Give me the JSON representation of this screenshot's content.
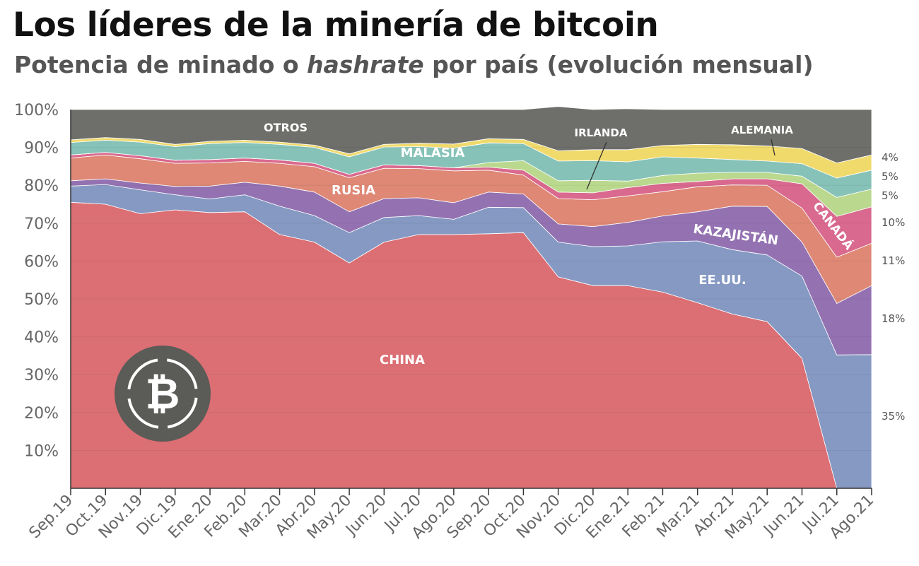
{
  "title": "Los líderes de la minería de bitcoin",
  "subtitle": {
    "before": "Potencia de minado o ",
    "italic": "hashrate",
    "after": " por país (evolución mensual)"
  },
  "chart_data": {
    "type": "area",
    "stacked": true,
    "title": "Los líderes de la minería de bitcoin",
    "subtitle": "Potencia de minado o hashrate por país (evolución mensual)",
    "ylim": [
      0,
      100
    ],
    "yticks": [
      "10%",
      "20%",
      "30%",
      "40%",
      "50%",
      "60%",
      "70%",
      "80%",
      "90%",
      "100%"
    ],
    "categories": [
      "Sep.19",
      "Oct.19",
      "Nov.19",
      "Dic.19",
      "Ene.20",
      "Feb.20",
      "Mar.20",
      "Abr.20",
      "May.20",
      "Jun.20",
      "Jul.20",
      "Ago.20",
      "Sep.20",
      "Oct.20",
      "Nov.20",
      "Dic.20",
      "Ene.21",
      "Feb.21",
      "Mar.21",
      "Abr.21",
      "May.21",
      "Jun.21",
      "Jul.21",
      "Ago.21"
    ],
    "series": [
      {
        "name": "CHINA",
        "color": "#db6f74",
        "values": [
          75.5,
          75.0,
          72.5,
          73.5,
          72.8,
          73.0,
          67.0,
          65.0,
          59.5,
          65.0,
          67.0,
          67.0,
          67.2,
          67.5,
          55.8,
          53.5,
          53.5,
          51.8,
          49.0,
          46.0,
          44.0,
          34.3,
          0.0,
          0.0
        ]
      },
      {
        "name": "EE.UU.",
        "color": "#8599c3",
        "values": [
          4.3,
          5.2,
          6.3,
          4.0,
          3.6,
          4.5,
          7.5,
          7.0,
          8.0,
          6.5,
          5.0,
          4.0,
          7.0,
          6.6,
          9.2,
          10.3,
          10.5,
          13.3,
          16.3,
          17.0,
          17.6,
          21.7,
          35.2,
          35.3
        ]
      },
      {
        "name": "KAZAJISTÁN",
        "color": "#9472b2",
        "values": [
          1.4,
          1.5,
          1.8,
          2.2,
          3.4,
          3.3,
          5.3,
          6.2,
          5.5,
          5.0,
          4.7,
          4.4,
          4.0,
          3.6,
          4.8,
          5.3,
          6.2,
          6.8,
          7.7,
          11.5,
          12.8,
          9.0,
          13.6,
          18.2
        ]
      },
      {
        "name": "RUSIA",
        "color": "#de8875",
        "values": [
          6.0,
          6.3,
          6.4,
          6.1,
          6.1,
          5.5,
          6.0,
          6.7,
          9.0,
          8.0,
          7.7,
          8.4,
          5.8,
          5.0,
          6.7,
          7.1,
          7.0,
          6.4,
          6.6,
          5.6,
          5.6,
          9.0,
          12.2,
          11.2
        ]
      },
      {
        "name": "CANADÁ",
        "color": "#d9698e",
        "values": [
          0.8,
          0.7,
          0.8,
          0.8,
          0.9,
          0.9,
          0.9,
          0.9,
          0.9,
          0.9,
          0.8,
          0.8,
          0.8,
          1.3,
          1.7,
          1.8,
          2.2,
          2.2,
          1.4,
          1.6,
          1.7,
          6.4,
          10.8,
          9.6
        ]
      },
      {
        "name": "IRLANDA",
        "color": "#bad98e",
        "values": [
          0.0,
          0.0,
          0.0,
          0.0,
          0.0,
          0.0,
          0.0,
          0.0,
          0.0,
          0.0,
          0.0,
          0.0,
          1.2,
          2.5,
          3.0,
          3.3,
          1.7,
          2.1,
          2.2,
          1.7,
          1.7,
          2.0,
          5.0,
          4.7
        ]
      },
      {
        "name": "MALASIA",
        "color": "#86c2b7",
        "values": [
          3.3,
          3.2,
          3.6,
          3.6,
          4.2,
          4.1,
          4.1,
          4.2,
          4.6,
          4.7,
          5.0,
          5.2,
          5.2,
          4.5,
          5.2,
          5.2,
          5.1,
          4.9,
          4.0,
          3.4,
          3.0,
          3.3,
          5.1,
          5.0
        ]
      },
      {
        "name": "ALEMANIA",
        "color": "#f0da6c",
        "values": [
          0.7,
          0.7,
          0.7,
          0.6,
          0.6,
          0.6,
          0.6,
          0.6,
          0.8,
          0.7,
          0.9,
          1.1,
          1.1,
          1.1,
          2.7,
          2.9,
          3.2,
          3.0,
          3.6,
          3.9,
          4.0,
          4.0,
          4.0,
          4.0
        ]
      },
      {
        "name": "OTROS",
        "color": "#6e6e6a",
        "values": [
          8.0,
          7.4,
          7.9,
          9.2,
          8.4,
          8.1,
          8.6,
          9.4,
          11.7,
          9.2,
          8.9,
          9.1,
          7.7,
          7.9,
          11.7,
          10.6,
          10.8,
          9.5,
          9.2,
          9.3,
          9.6,
          10.3,
          14.1,
          12.0
        ]
      }
    ],
    "right_labels": [
      "4%",
      "5%",
      "5%",
      "10%",
      "11%",
      "18%",
      "35%"
    ]
  },
  "area_labels": {
    "otros": "OTROS",
    "irlanda": "IRLANDA",
    "alemania": "ALEMANIA",
    "malasia": "MALASIA",
    "rusia": "RUSIA",
    "kazajistan": "KAZAJISTÁN",
    "eeuu": "EE.UU.",
    "canada": "CANADÁ",
    "china": "CHINA"
  },
  "logo": {
    "glyph": "₿",
    "icon": "bitcoin-icon"
  }
}
